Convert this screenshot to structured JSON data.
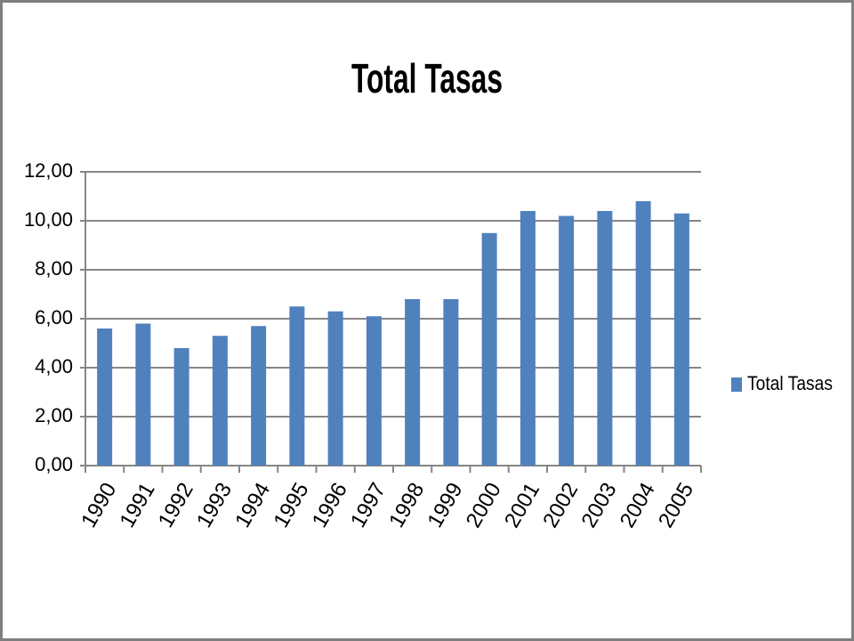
{
  "chart_data": {
    "type": "bar",
    "title": "Total Tasas",
    "categories": [
      "1990",
      "1991",
      "1992",
      "1993",
      "1994",
      "1995",
      "1996",
      "1997",
      "1998",
      "1999",
      "2000",
      "2001",
      "2002",
      "2003",
      "2004",
      "2005"
    ],
    "series": [
      {
        "name": "Total Tasas",
        "color": "#4f81bd",
        "values": [
          5.6,
          5.8,
          4.8,
          5.3,
          5.7,
          6.5,
          6.3,
          6.1,
          6.8,
          6.8,
          9.5,
          10.4,
          10.2,
          10.4,
          10.8,
          10.3
        ]
      }
    ],
    "ylim": [
      0,
      12
    ],
    "yticks": [
      {
        "value": 0,
        "label": "0,00"
      },
      {
        "value": 2,
        "label": "2,00"
      },
      {
        "value": 4,
        "label": "4,00"
      },
      {
        "value": 6,
        "label": "6,00"
      },
      {
        "value": 8,
        "label": "8,00"
      },
      {
        "value": 10,
        "label": "10,00"
      },
      {
        "value": 12,
        "label": "12,00"
      }
    ],
    "grid": true,
    "legend": "right"
  }
}
